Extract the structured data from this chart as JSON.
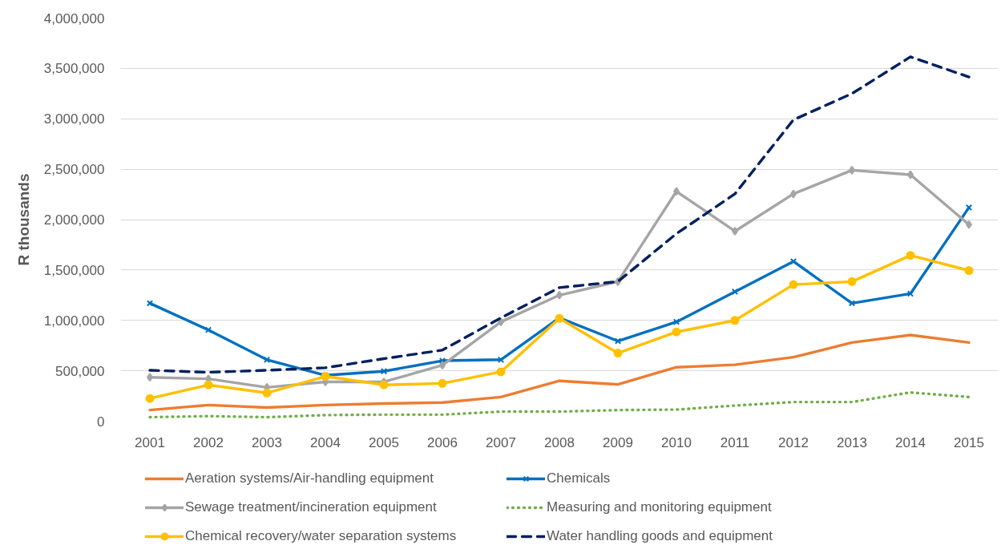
{
  "chart_data": {
    "type": "line",
    "ylabel": "R thousands",
    "categories": [
      "2001",
      "2002",
      "2003",
      "2004",
      "2005",
      "2006",
      "2007",
      "2008",
      "2009",
      "2010",
      "2011",
      "2012",
      "2013",
      "2014",
      "2015"
    ],
    "series": [
      {
        "name": "Aeration systems/Air-handling equipment",
        "color": "#ed7d31",
        "marker": "none",
        "line_style": "solid",
        "values": [
          110000,
          160000,
          135000,
          160000,
          175000,
          185000,
          240000,
          400000,
          365000,
          535000,
          560000,
          635000,
          780000,
          855000,
          780000
        ]
      },
      {
        "name": "Chemicals",
        "color": "#0070c0",
        "marker": "cross",
        "line_style": "solid",
        "values": [
          1170000,
          905000,
          610000,
          455000,
          495000,
          600000,
          610000,
          1025000,
          795000,
          985000,
          1285000,
          1585000,
          1170000,
          1265000,
          2120000
        ]
      },
      {
        "name": "Sewage treatment/incineration equipment",
        "color": "#a5a5a5",
        "marker": "diamond",
        "line_style": "solid",
        "values": [
          435000,
          420000,
          335000,
          390000,
          390000,
          555000,
          985000,
          1250000,
          1385000,
          2280000,
          1885000,
          2255000,
          2490000,
          2445000,
          1950000
        ]
      },
      {
        "name": "Measuring and monitoring equipment",
        "color": "#70ad47",
        "marker": "none",
        "line_style": "dotted",
        "values": [
          40000,
          50000,
          40000,
          60000,
          65000,
          65000,
          95000,
          95000,
          110000,
          115000,
          155000,
          190000,
          190000,
          285000,
          240000
        ]
      },
      {
        "name": "Chemical recovery/water separation systems",
        "color": "#ffc000",
        "marker": "circle",
        "line_style": "solid",
        "values": [
          225000,
          360000,
          280000,
          445000,
          360000,
          375000,
          490000,
          1020000,
          675000,
          885000,
          1000000,
          1355000,
          1385000,
          1645000,
          1495000
        ]
      },
      {
        "name": "Water handling goods and equipment",
        "color": "#002060",
        "marker": "none",
        "line_style": "dashed",
        "values": [
          505000,
          485000,
          505000,
          530000,
          620000,
          705000,
          1025000,
          1325000,
          1385000,
          1860000,
          2255000,
          2990000,
          3250000,
          3615000,
          3415000
        ]
      }
    ],
    "ylim": [
      0,
      4000000
    ],
    "yticks": [
      0,
      {
        "value": 500000,
        "label": "500,000"
      },
      {
        "value": 1000000,
        "label": "1,000,000"
      },
      {
        "value": 1500000,
        "label": "1,500,000"
      },
      {
        "value": 2000000,
        "label": "2,000,000"
      },
      {
        "value": 2500000,
        "label": "2,500,000"
      },
      {
        "value": 3000000,
        "label": "3,000,000"
      },
      {
        "value": 3500000,
        "label": "3,500,000"
      },
      {
        "value": 4000000,
        "label": "4,000,000"
      }
    ],
    "grid": "y",
    "legend": "bottom"
  }
}
